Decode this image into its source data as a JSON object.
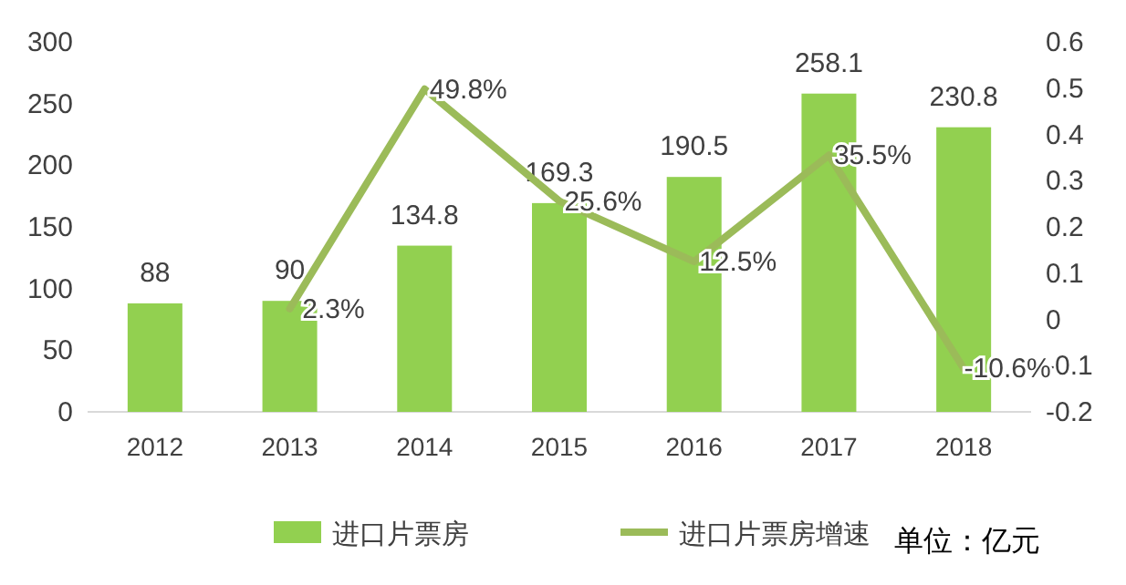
{
  "chart_data": {
    "type": "bar",
    "categories": [
      "2012",
      "2013",
      "2014",
      "2015",
      "2016",
      "2017",
      "2018"
    ],
    "series": [
      {
        "name": "进口片票房",
        "color": "#92d050",
        "values": [
          88,
          90,
          134.8,
          169.3,
          190.5,
          258.1,
          230.8
        ],
        "value_labels": [
          "88",
          "90",
          "134.8",
          "169.3",
          "190.5",
          "258.1",
          "230.8"
        ]
      },
      {
        "name": "进口片票房增速",
        "type": "line",
        "axis": "y2",
        "color": "#9bbb59",
        "values": [
          null,
          0.023,
          0.498,
          0.256,
          0.125,
          0.355,
          -0.106
        ],
        "value_labels": [
          null,
          "2.3%",
          "49.8%",
          "25.6%",
          "12.5%",
          "35.5%",
          "-10.6%"
        ]
      }
    ],
    "ylim": [
      0,
      300
    ],
    "yticks": [
      0,
      50,
      100,
      150,
      200,
      250,
      300
    ],
    "y2lim": [
      -0.2,
      0.6
    ],
    "y2ticks": [
      -0.2,
      -0.1,
      0,
      0.1,
      0.2,
      0.3,
      0.4,
      0.5,
      0.6
    ],
    "legend": "bottom",
    "annotations": [
      "单位：亿元"
    ]
  }
}
